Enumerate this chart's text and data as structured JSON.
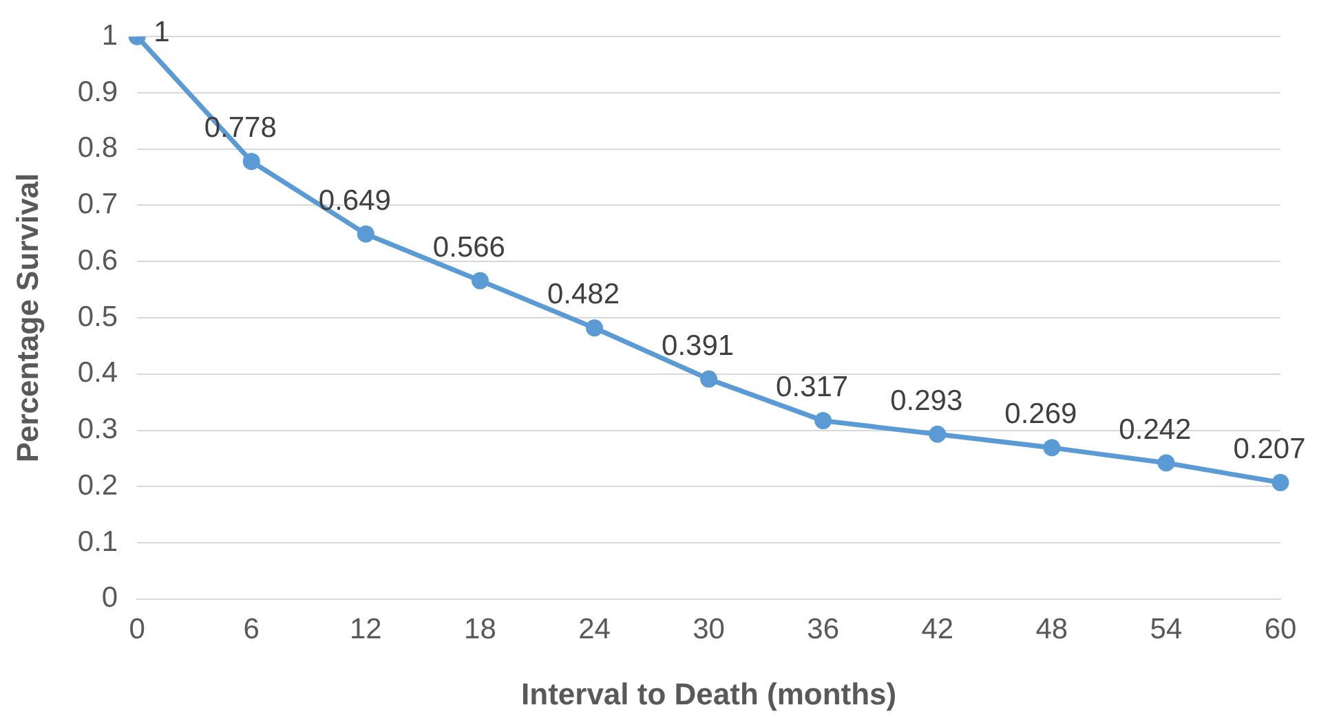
{
  "chart_data": {
    "type": "line",
    "xlabel": "Interval to Death (months)",
    "ylabel": "Percentage Survival",
    "categories": [
      "0",
      "6",
      "12",
      "18",
      "24",
      "30",
      "36",
      "42",
      "48",
      "54",
      "60"
    ],
    "series": [
      {
        "color": "#5b9bd5",
        "values": [
          1,
          0.778,
          0.649,
          0.566,
          0.482,
          0.391,
          0.317,
          0.293,
          0.269,
          0.242,
          0.207
        ]
      }
    ],
    "ylim": [
      0,
      1
    ],
    "yticks": [
      0,
      0.1,
      0.2,
      0.3,
      0.4,
      0.5,
      0.6,
      0.7,
      0.8,
      0.9,
      1
    ],
    "grid": "y",
    "legend": false,
    "marker": "circle",
    "line_style": "solid",
    "data_labels": true
  }
}
